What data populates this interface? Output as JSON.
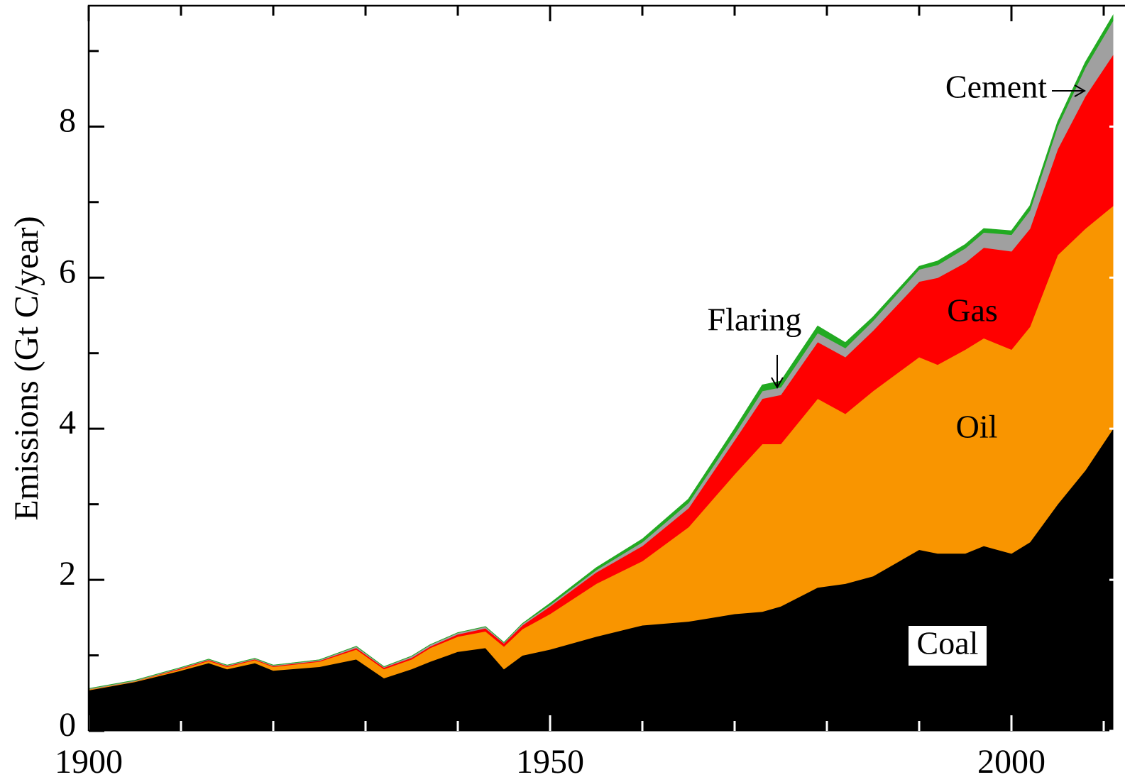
{
  "chart_data": {
    "type": "stacked_area",
    "y_label": "Emissions (Gt C/year)",
    "x": [
      1900,
      1905,
      1910,
      1913,
      1915,
      1918,
      1920,
      1925,
      1929,
      1932,
      1935,
      1937,
      1940,
      1943,
      1945,
      1947,
      1950,
      1955,
      1960,
      1965,
      1970,
      1973,
      1975,
      1979,
      1982,
      1985,
      1990,
      1992,
      1995,
      1997,
      2000,
      2002,
      2005,
      2008,
      2011
    ],
    "series": [
      {
        "name": "Coal",
        "color": "#000000",
        "values": [
          0.54,
          0.65,
          0.8,
          0.9,
          0.82,
          0.9,
          0.8,
          0.85,
          0.95,
          0.7,
          0.82,
          0.92,
          1.05,
          1.1,
          0.82,
          1.0,
          1.08,
          1.25,
          1.4,
          1.45,
          1.55,
          1.58,
          1.65,
          1.9,
          1.95,
          2.05,
          2.4,
          2.35,
          2.35,
          2.45,
          2.35,
          2.5,
          3.0,
          3.45,
          4.0
        ]
      },
      {
        "name": "Oil",
        "color": "#f99500",
        "values": [
          0.01,
          0.01,
          0.02,
          0.03,
          0.03,
          0.04,
          0.05,
          0.07,
          0.13,
          0.12,
          0.13,
          0.18,
          0.2,
          0.22,
          0.3,
          0.35,
          0.47,
          0.7,
          0.85,
          1.25,
          1.85,
          2.22,
          2.15,
          2.5,
          2.25,
          2.45,
          2.55,
          2.5,
          2.7,
          2.75,
          2.7,
          2.85,
          3.3,
          3.2,
          2.95
        ]
      },
      {
        "name": "Gas",
        "color": "#ff0000",
        "values": [
          0,
          0,
          0.01,
          0.01,
          0.01,
          0.01,
          0.01,
          0.01,
          0.02,
          0.02,
          0.02,
          0.02,
          0.03,
          0.04,
          0.04,
          0.05,
          0.1,
          0.15,
          0.2,
          0.25,
          0.45,
          0.6,
          0.65,
          0.75,
          0.75,
          0.8,
          1.0,
          1.15,
          1.15,
          1.2,
          1.3,
          1.3,
          1.4,
          1.75,
          2.0
        ]
      },
      {
        "name": "Cement",
        "color": "#a0a0a0",
        "values": [
          0.01,
          0.01,
          0.01,
          0.01,
          0.01,
          0.01,
          0.01,
          0.01,
          0.02,
          0.01,
          0.02,
          0.02,
          0.02,
          0.02,
          0.01,
          0.02,
          0.02,
          0.03,
          0.05,
          0.07,
          0.08,
          0.1,
          0.1,
          0.12,
          0.12,
          0.13,
          0.16,
          0.17,
          0.19,
          0.2,
          0.22,
          0.24,
          0.3,
          0.38,
          0.45
        ]
      },
      {
        "name": "Flaring",
        "color": "#22aa22",
        "values": [
          0,
          0,
          0,
          0,
          0,
          0,
          0,
          0,
          0,
          0,
          0,
          0,
          0,
          0,
          0,
          0,
          0.02,
          0.03,
          0.04,
          0.05,
          0.07,
          0.08,
          0.08,
          0.09,
          0.07,
          0.05,
          0.04,
          0.05,
          0.05,
          0.05,
          0.05,
          0.06,
          0.06,
          0.07,
          0.07
        ]
      }
    ],
    "xlim": [
      1900,
      2011
    ],
    "ylim": [
      0,
      9.6
    ],
    "xticks": [
      1900,
      1950,
      2000
    ],
    "xminor_ticks": [
      1910,
      1920,
      1930,
      1940,
      1960,
      1970,
      1980,
      1990,
      2010
    ],
    "yticks": [
      0,
      2,
      4,
      6,
      8
    ],
    "yminor_ticks": [
      1,
      3,
      5,
      7,
      9
    ]
  }
}
